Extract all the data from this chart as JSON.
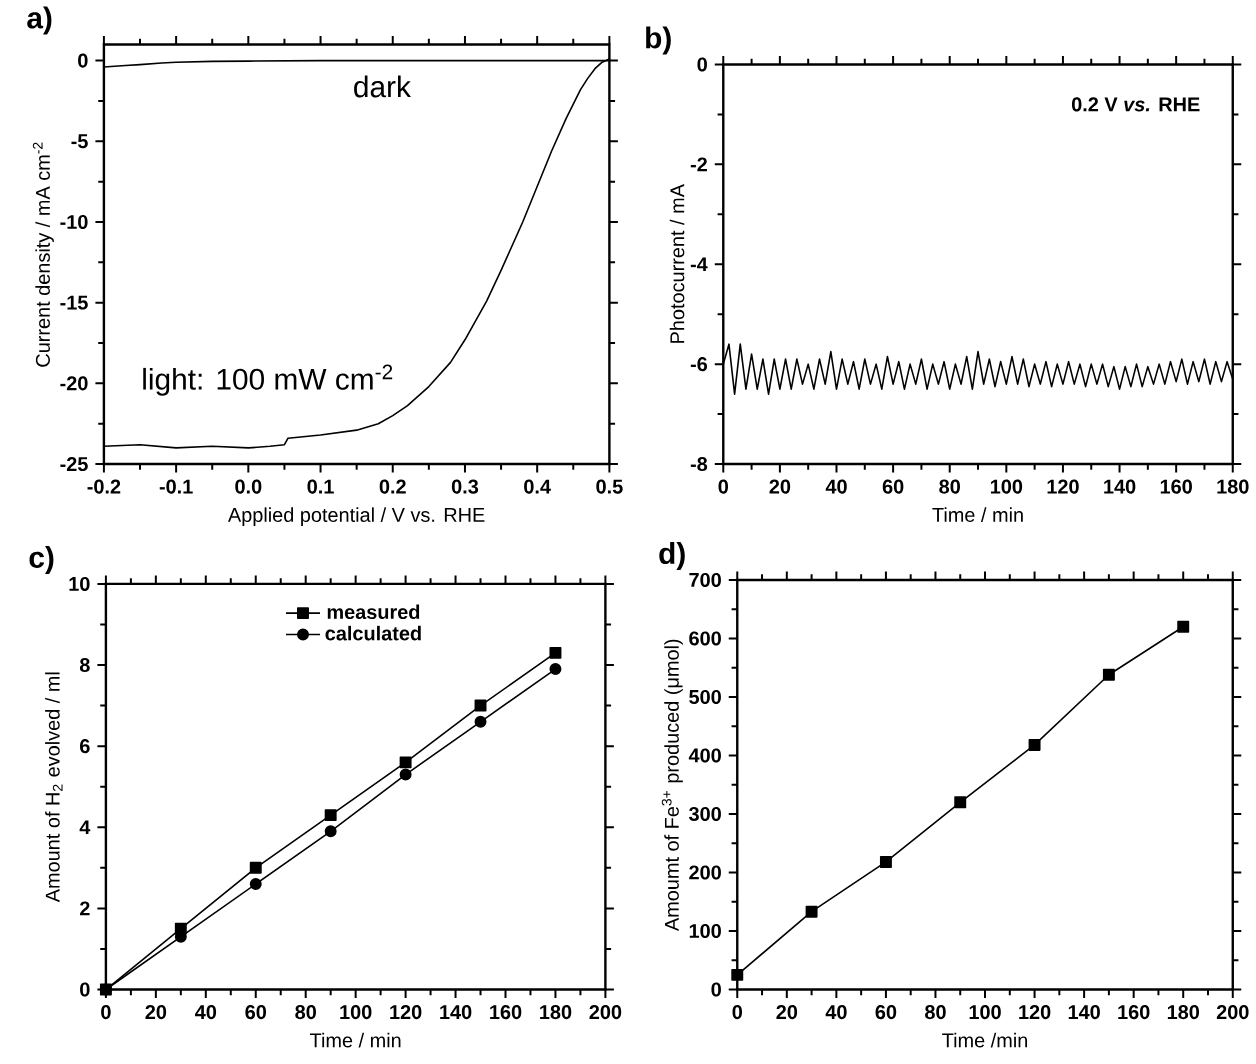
{
  "chart_data": [
    {
      "type": "line",
      "title": "a)",
      "xlabel": "Applied potential / V vs. RHE",
      "ylabel": "Current density / mA cm$^{-2}$",
      "xlim": [
        -0.2,
        0.5
      ],
      "ylim": [
        -25,
        1
      ],
      "xticks": [
        -0.2,
        -0.1,
        {
          "value": 0,
          "label": "0.0"
        },
        0.1,
        0.2,
        0.3,
        0.4,
        0.5
      ],
      "yticks": [
        -25,
        -20,
        -15,
        -10,
        -5,
        0
      ],
      "annotations": [
        "dark",
        "light: 100 mW cm$^{-2}$"
      ],
      "marker": "none",
      "series": [
        {
          "color": "#000000",
          "x": [
            -0.2,
            -0.17,
            -0.15,
            -0.12,
            -0.1,
            -0.05,
            0.0,
            0.1,
            0.2,
            0.3,
            0.4,
            0.5
          ],
          "values": [
            -0.4,
            -0.3,
            -0.25,
            -0.15,
            -0.1,
            -0.05,
            -0.03,
            0,
            0,
            0,
            0,
            0
          ]
        },
        {
          "color": "#000000",
          "x": [
            -0.2,
            -0.15,
            -0.1,
            -0.05,
            0.0,
            0.03,
            0.05,
            0.055,
            0.1,
            0.15,
            0.18,
            0.2,
            0.22,
            0.25,
            0.28,
            0.3,
            0.33,
            0.35,
            0.38,
            0.4,
            0.42,
            0.44,
            0.46,
            0.47,
            0.48,
            0.49,
            0.5
          ],
          "values": [
            -23.9,
            -23.8,
            -24.0,
            -23.9,
            -24.0,
            -23.9,
            -23.8,
            -23.4,
            -23.2,
            -22.9,
            -22.5,
            -22.0,
            -21.4,
            -20.2,
            -18.7,
            -17.3,
            -14.9,
            -13.0,
            -10.0,
            -7.8,
            -5.6,
            -3.6,
            -1.8,
            -1.1,
            -0.5,
            -0.1,
            0.1
          ]
        }
      ]
    },
    {
      "type": "line",
      "title": "b)",
      "xlabel": "Time / min",
      "ylabel": "Photocurrent / mA",
      "xlim": [
        0,
        180
      ],
      "ylim": [
        -8,
        0
      ],
      "xticks": [
        0,
        20,
        40,
        60,
        80,
        100,
        120,
        140,
        160,
        180
      ],
      "yticks": [
        -8,
        -6,
        -4,
        -2,
        0
      ],
      "annotations": [
        "0.2 V *vs.* RHE"
      ],
      "marker": "none",
      "series": [
        {
          "color": "#000000",
          "x": [
            0,
            2,
            4,
            6,
            8,
            10,
            12,
            14,
            16,
            18,
            20,
            22,
            24,
            26,
            28,
            30,
            32,
            34,
            36,
            38,
            40,
            42,
            44,
            46,
            48,
            50,
            52,
            54,
            56,
            58,
            60,
            62,
            64,
            66,
            68,
            70,
            72,
            74,
            76,
            78,
            80,
            82,
            84,
            86,
            88,
            90,
            92,
            94,
            96,
            98,
            100,
            102,
            104,
            106,
            108,
            110,
            112,
            114,
            116,
            118,
            120,
            122,
            124,
            126,
            128,
            130,
            132,
            134,
            136,
            138,
            140,
            142,
            144,
            146,
            148,
            150,
            152,
            154,
            156,
            158,
            160,
            162,
            164,
            166,
            168,
            170,
            172,
            174,
            176,
            178,
            180
          ],
          "values": [
            -6.0,
            -5.6,
            -6.6,
            -5.6,
            -6.5,
            -5.8,
            -6.5,
            -5.9,
            -6.6,
            -5.9,
            -6.5,
            -5.9,
            -6.5,
            -5.9,
            -6.4,
            -6.0,
            -6.5,
            -5.9,
            -6.4,
            -5.75,
            -6.5,
            -5.9,
            -6.4,
            -5.95,
            -6.5,
            -5.9,
            -6.4,
            -6.0,
            -6.5,
            -5.85,
            -6.4,
            -5.95,
            -6.5,
            -6.0,
            -6.4,
            -5.9,
            -6.5,
            -6.0,
            -6.4,
            -5.95,
            -6.5,
            -6.0,
            -6.4,
            -5.85,
            -6.5,
            -5.75,
            -6.4,
            -5.9,
            -6.45,
            -5.95,
            -6.4,
            -5.85,
            -6.4,
            -5.9,
            -6.45,
            -6.0,
            -6.4,
            -5.95,
            -6.45,
            -6.0,
            -6.4,
            -5.95,
            -6.4,
            -6.0,
            -6.45,
            -6.0,
            -6.4,
            -6.0,
            -6.45,
            -6.05,
            -6.5,
            -6.05,
            -6.45,
            -6.0,
            -6.45,
            -6.05,
            -6.4,
            -6.0,
            -6.4,
            -5.95,
            -6.35,
            -5.9,
            -6.4,
            -5.95,
            -6.35,
            -5.9,
            -6.4,
            -5.95,
            -6.35,
            -5.95,
            -6.3
          ]
        }
      ]
    },
    {
      "type": "line",
      "xlabel": "Time / min",
      "ylabel": "Amount of H$_{2}$ evolved / ml",
      "title": "c)",
      "xlim": [
        0,
        200
      ],
      "ylim": [
        0,
        10
      ],
      "xticks": [
        0,
        20,
        40,
        60,
        80,
        100,
        120,
        140,
        160,
        180,
        200
      ],
      "yticks": [
        0,
        2,
        4,
        6,
        8,
        10
      ],
      "legend": "top",
      "series": [
        {
          "name": "measured",
          "color": "#000000",
          "marker": "square",
          "x": [
            0,
            30,
            60,
            90,
            120,
            150,
            180
          ],
          "values": [
            0,
            1.5,
            3.0,
            4.3,
            5.6,
            7.0,
            8.3
          ]
        },
        {
          "name": "calculated",
          "color": "#000000",
          "marker": "circle",
          "x": [
            0,
            30,
            60,
            90,
            120,
            150,
            180
          ],
          "values": [
            0,
            1.3,
            2.6,
            3.9,
            5.3,
            6.6,
            7.9
          ]
        }
      ]
    },
    {
      "type": "line",
      "title": "d)",
      "xlabel": "Time /min",
      "ylabel": "Amoumt of Fe$^{3+}$ produced (μmol)",
      "xlim": [
        0,
        200
      ],
      "ylim": [
        0,
        700
      ],
      "xticks": [
        0,
        20,
        40,
        60,
        80,
        100,
        120,
        140,
        160,
        180,
        200
      ],
      "yticks": [
        0,
        100,
        200,
        300,
        400,
        500,
        600,
        700
      ],
      "marker": "square",
      "series": [
        {
          "color": "#000000",
          "x": [
            0,
            30,
            60,
            90,
            120,
            150,
            180
          ],
          "values": [
            25,
            133,
            218,
            320,
            418,
            538,
            620
          ]
        }
      ]
    }
  ]
}
